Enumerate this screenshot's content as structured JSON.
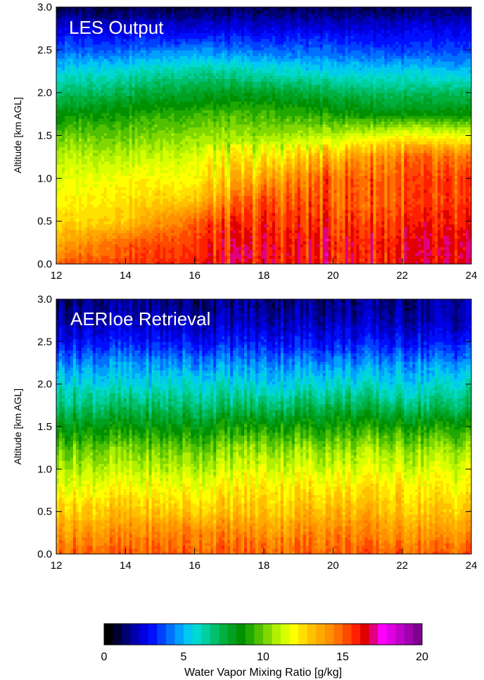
{
  "chart_data": [
    {
      "type": "heatmap",
      "title": "LES Output",
      "xlabel": "",
      "ylabel": "Altitude [km AGL]",
      "xlim": [
        12,
        24
      ],
      "ylim": [
        0.0,
        3.0
      ],
      "x_ticks": [
        "12",
        "14",
        "16",
        "18",
        "20",
        "22",
        "24"
      ],
      "y_ticks": [
        "0.0",
        "0.5",
        "1.0",
        "1.5",
        "2.0",
        "2.5",
        "3.0"
      ],
      "x": [
        12,
        14,
        16,
        18,
        20,
        22,
        24
      ],
      "y": [
        0.0,
        0.25,
        0.5,
        0.75,
        1.0,
        1.25,
        1.5,
        1.75,
        2.0,
        2.25,
        2.5,
        2.75,
        3.0
      ],
      "z": [
        [
          15.0,
          15.5,
          16.0,
          16.0,
          16.0,
          16.0,
          16.0
        ],
        [
          13.5,
          15.0,
          15.5,
          16.0,
          16.0,
          16.0,
          16.0
        ],
        [
          12.5,
          13.0,
          15.0,
          15.5,
          15.5,
          15.5,
          15.5
        ],
        [
          12.0,
          12.5,
          13.0,
          15.0,
          15.0,
          15.0,
          15.0
        ],
        [
          11.5,
          12.0,
          12.0,
          13.5,
          15.0,
          15.0,
          15.0
        ],
        [
          11.0,
          11.0,
          11.5,
          12.0,
          13.5,
          14.5,
          14.0
        ],
        [
          10.0,
          10.0,
          10.5,
          10.5,
          11.0,
          12.0,
          11.5
        ],
        [
          8.5,
          9.0,
          9.5,
          9.5,
          9.0,
          8.5,
          8.5
        ],
        [
          7.0,
          7.5,
          8.0,
          8.0,
          7.5,
          7.0,
          7.0
        ],
        [
          5.5,
          6.0,
          6.5,
          6.0,
          5.5,
          5.5,
          5.0
        ],
        [
          4.0,
          4.0,
          4.5,
          4.0,
          4.0,
          3.5,
          3.5
        ],
        [
          2.5,
          2.5,
          2.5,
          2.5,
          2.5,
          2.5,
          2.5
        ],
        [
          1.0,
          1.0,
          1.0,
          1.0,
          1.0,
          1.0,
          1.0
        ]
      ]
    },
    {
      "type": "heatmap",
      "title": "AERIoe Retrieval",
      "xlabel": "",
      "ylabel": "Altitude [km AGL]",
      "xlim": [
        12,
        24
      ],
      "ylim": [
        0.0,
        3.0
      ],
      "x_ticks": [
        "12",
        "14",
        "16",
        "18",
        "20",
        "22",
        "24"
      ],
      "y_ticks": [
        "0.0",
        "0.5",
        "1.0",
        "1.5",
        "2.0",
        "2.5",
        "3.0"
      ],
      "x": [
        12,
        14,
        16,
        18,
        20,
        22,
        24
      ],
      "y": [
        0.0,
        0.25,
        0.5,
        0.75,
        1.0,
        1.25,
        1.5,
        1.75,
        2.0,
        2.25,
        2.5,
        2.75,
        3.0
      ],
      "z": [
        [
          15.0,
          15.0,
          15.0,
          15.0,
          15.0,
          15.0,
          15.0
        ],
        [
          14.0,
          14.0,
          14.5,
          14.0,
          14.5,
          14.0,
          14.0
        ],
        [
          13.0,
          13.0,
          13.0,
          13.0,
          13.5,
          13.0,
          13.0
        ],
        [
          12.0,
          12.0,
          12.0,
          12.5,
          12.5,
          12.5,
          12.0
        ],
        [
          11.0,
          11.0,
          11.0,
          11.5,
          11.5,
          11.5,
          11.5
        ],
        [
          10.0,
          10.0,
          10.0,
          10.5,
          10.5,
          10.5,
          10.5
        ],
        [
          8.5,
          8.5,
          8.5,
          9.0,
          9.0,
          9.0,
          9.0
        ],
        [
          7.0,
          7.0,
          7.0,
          7.0,
          7.5,
          7.0,
          7.0
        ],
        [
          6.0,
          5.5,
          6.0,
          5.5,
          6.0,
          5.5,
          6.0
        ],
        [
          4.5,
          4.5,
          4.5,
          4.5,
          4.5,
          4.5,
          4.5
        ],
        [
          3.0,
          3.0,
          3.0,
          3.0,
          3.0,
          3.0,
          3.0
        ],
        [
          2.0,
          2.0,
          2.0,
          2.0,
          2.0,
          2.0,
          2.0
        ],
        [
          1.5,
          1.5,
          1.5,
          1.5,
          1.5,
          1.5,
          2.0
        ]
      ]
    }
  ],
  "colorbar": {
    "label": "Water Vapor Mixing Ratio [g/kg]",
    "range": [
      0,
      20
    ],
    "ticks": [
      "0",
      "5",
      "10",
      "15",
      "20"
    ],
    "levels": 36,
    "colors": [
      "#000000",
      "#000033",
      "#000070",
      "#0000b0",
      "#0000e0",
      "#0010ff",
      "#0040ff",
      "#0070ff",
      "#00a0ff",
      "#00c8f0",
      "#00d8d0",
      "#00d0a0",
      "#00c070",
      "#00b040",
      "#00a020",
      "#009000",
      "#20a800",
      "#50c000",
      "#80d800",
      "#b0f000",
      "#d8ff00",
      "#ffff00",
      "#ffe000",
      "#ffc000",
      "#ffa800",
      "#ff9000",
      "#ff7000",
      "#ff4800",
      "#ff2000",
      "#e00000",
      "#e00080",
      "#ff00ff",
      "#e000e0",
      "#c000c8",
      "#a000b0",
      "#800090"
    ]
  }
}
